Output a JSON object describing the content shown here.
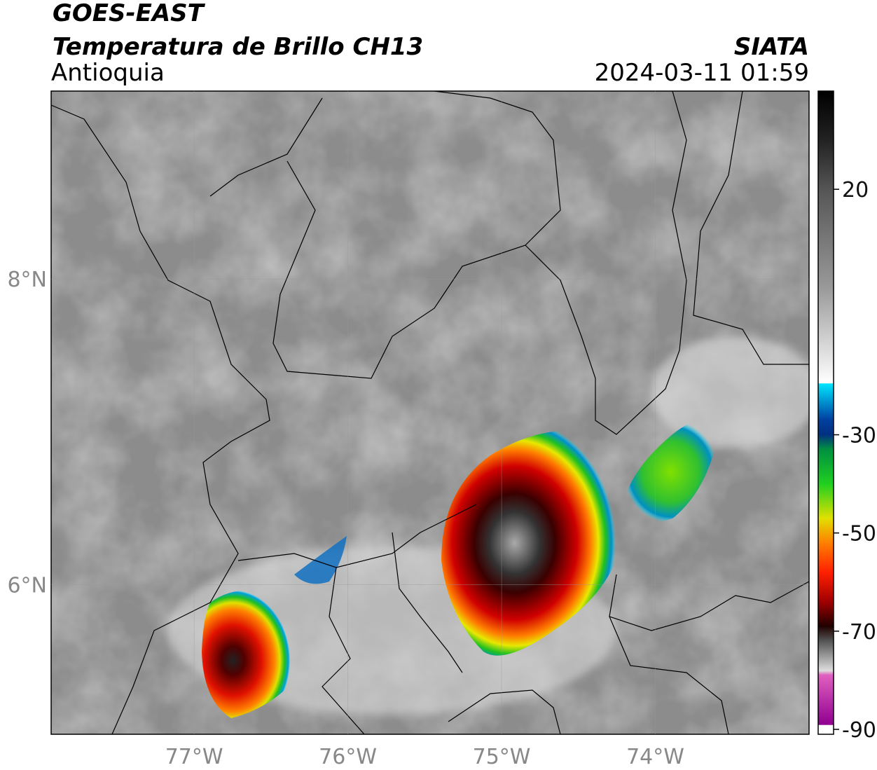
{
  "header": {
    "title": "GOES-EAST",
    "subtitle": "Temperatura de Brillo CH13",
    "region": "Antioquia",
    "source": "SIATA",
    "timestamp": "2024-03-11 01:59"
  },
  "map": {
    "xlim": [
      -77.93,
      -73.0
    ],
    "ylim": [
      5.02,
      9.23
    ],
    "xticks": [
      {
        "value": -77,
        "label": "77°W"
      },
      {
        "value": -76,
        "label": "76°W"
      },
      {
        "value": -75,
        "label": "75°W"
      },
      {
        "value": -74,
        "label": "74°W"
      }
    ],
    "yticks": [
      {
        "value": 8,
        "label": "8°N"
      },
      {
        "value": 6,
        "label": "6°N"
      }
    ],
    "grid": true
  },
  "colorbar": {
    "lim": [
      -91,
      40
    ],
    "ticks": [
      20,
      -30,
      -50,
      -70,
      -90
    ]
  }
}
